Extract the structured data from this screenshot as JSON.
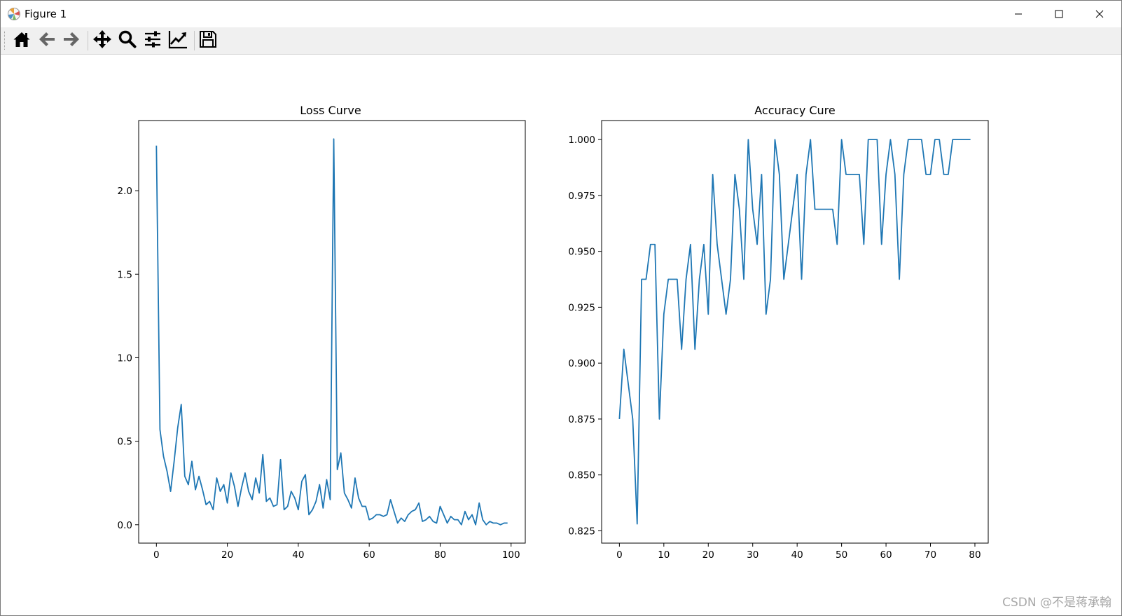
{
  "window": {
    "title": "Figure 1",
    "minimize_icon": "minimize-icon",
    "maximize_icon": "maximize-icon",
    "close_icon": "close-icon"
  },
  "toolbar": {
    "buttons": [
      {
        "name": "home",
        "icon": "home-icon"
      },
      {
        "name": "back",
        "icon": "arrow-left-icon"
      },
      {
        "name": "forward",
        "icon": "arrow-right-icon"
      },
      {
        "name": "pan",
        "icon": "move-icon"
      },
      {
        "name": "zoom",
        "icon": "magnifier-icon"
      },
      {
        "name": "subplots",
        "icon": "sliders-icon"
      },
      {
        "name": "customize",
        "icon": "chart-edit-icon"
      },
      {
        "name": "save",
        "icon": "save-icon"
      }
    ]
  },
  "watermark": "CSDN @不是蒋承翰",
  "chart_data": [
    {
      "type": "line",
      "title": "Loss Curve",
      "xlabel": "",
      "ylabel": "",
      "xlim": [
        -5,
        104
      ],
      "ylim": [
        -0.11,
        2.42
      ],
      "xticks": [
        0,
        20,
        40,
        60,
        80,
        100
      ],
      "yticks": [
        0.0,
        0.5,
        1.0,
        1.5,
        2.0
      ],
      "ytick_labels": [
        "0.0",
        "0.5",
        "1.0",
        "1.5",
        "2.0"
      ],
      "grid": false,
      "color": "#1f77b4",
      "x_start": 0,
      "values": [
        2.27,
        0.57,
        0.41,
        0.32,
        0.2,
        0.38,
        0.58,
        0.72,
        0.29,
        0.24,
        0.38,
        0.21,
        0.29,
        0.21,
        0.12,
        0.14,
        0.09,
        0.28,
        0.2,
        0.24,
        0.13,
        0.31,
        0.23,
        0.11,
        0.22,
        0.31,
        0.2,
        0.15,
        0.28,
        0.19,
        0.42,
        0.14,
        0.16,
        0.11,
        0.12,
        0.39,
        0.09,
        0.11,
        0.2,
        0.16,
        0.09,
        0.26,
        0.3,
        0.06,
        0.09,
        0.14,
        0.24,
        0.1,
        0.27,
        0.15,
        2.31,
        0.33,
        0.43,
        0.19,
        0.15,
        0.1,
        0.28,
        0.16,
        0.11,
        0.11,
        0.03,
        0.04,
        0.06,
        0.06,
        0.05,
        0.06,
        0.15,
        0.08,
        0.01,
        0.04,
        0.02,
        0.06,
        0.08,
        0.09,
        0.13,
        0.02,
        0.03,
        0.05,
        0.02,
        0.01,
        0.11,
        0.06,
        0.01,
        0.05,
        0.03,
        0.03,
        0.0,
        0.08,
        0.03,
        0.06,
        0.0,
        0.13,
        0.03,
        0.0,
        0.02,
        0.01,
        0.01,
        0.0,
        0.01,
        0.01
      ]
    },
    {
      "type": "line",
      "title": "Accuracy Cure",
      "xlabel": "",
      "ylabel": "",
      "xlim": [
        -4,
        83
      ],
      "ylim": [
        0.8195,
        1.0085
      ],
      "xticks": [
        0,
        10,
        20,
        30,
        40,
        50,
        60,
        70,
        80
      ],
      "yticks": [
        0.825,
        0.85,
        0.875,
        0.9,
        0.925,
        0.95,
        0.975,
        1.0
      ],
      "ytick_labels": [
        "0.825",
        "0.850",
        "0.875",
        "0.900",
        "0.925",
        "0.950",
        "0.975",
        "1.000"
      ],
      "grid": false,
      "color": "#1f77b4",
      "x_start": 0,
      "values": [
        0.875,
        0.9062,
        0.8906,
        0.875,
        0.8281,
        0.9375,
        0.9375,
        0.9531,
        0.9531,
        0.875,
        0.9219,
        0.9375,
        0.9375,
        0.9375,
        0.9062,
        0.9375,
        0.9531,
        0.9062,
        0.9375,
        0.9531,
        0.9219,
        0.9844,
        0.9531,
        0.9375,
        0.9219,
        0.9375,
        0.9844,
        0.9688,
        0.9375,
        1.0,
        0.9688,
        0.9531,
        0.9844,
        0.9219,
        0.9375,
        1.0,
        0.9844,
        0.9375,
        0.9531,
        0.9688,
        0.9844,
        0.9375,
        0.9844,
        1.0,
        0.9688,
        0.9688,
        0.9688,
        0.9688,
        0.9688,
        0.9531,
        1.0,
        0.9844,
        0.9844,
        0.9844,
        0.9844,
        0.9531,
        1.0,
        1.0,
        1.0,
        0.9531,
        0.9844,
        1.0,
        0.9844,
        0.9375,
        0.9844,
        1.0,
        1.0,
        1.0,
        1.0,
        0.9844,
        0.9844,
        1.0,
        1.0,
        0.9844,
        0.9844,
        1.0,
        1.0,
        1.0,
        1.0,
        1.0
      ]
    }
  ]
}
